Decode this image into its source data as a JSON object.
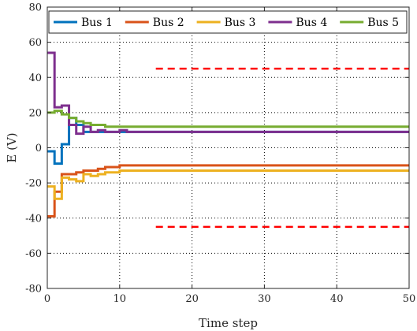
{
  "chart_data": {
    "type": "line",
    "title": "",
    "xlabel": "Time step",
    "ylabel": "E (V)",
    "xlim": [
      0,
      50
    ],
    "ylim": [
      -80,
      80
    ],
    "xticks": [
      0,
      10,
      20,
      30,
      40,
      50
    ],
    "yticks": [
      -80,
      -60,
      -40,
      -20,
      0,
      20,
      40,
      60,
      80
    ],
    "grid": true,
    "legend_position": "top",
    "line_style": "step",
    "series": [
      {
        "name": "Bus 1",
        "color": "#0072BD",
        "x": [
          0,
          1,
          2,
          3,
          4,
          5,
          50
        ],
        "y": [
          -2,
          -9,
          2,
          17,
          13,
          9,
          9
        ]
      },
      {
        "name": "Bus 2",
        "color": "#D95319",
        "x": [
          0,
          1,
          2,
          3,
          4,
          5,
          6,
          7,
          8,
          9,
          10,
          50
        ],
        "y": [
          -39,
          -25,
          -15,
          -15,
          -14,
          -13,
          -13,
          -12,
          -11,
          -11,
          -10,
          -10
        ]
      },
      {
        "name": "Bus 3",
        "color": "#EDB120",
        "x": [
          0,
          1,
          2,
          3,
          4,
          5,
          6,
          7,
          8,
          9,
          10,
          50
        ],
        "y": [
          -22,
          -29,
          -17,
          -18,
          -19,
          -15,
          -16,
          -15,
          -14,
          -14,
          -13,
          -13
        ]
      },
      {
        "name": "Bus 4",
        "color": "#7E2F8E",
        "x": [
          0,
          1,
          2,
          3,
          4,
          5,
          6,
          7,
          8,
          9,
          10,
          11,
          12,
          50
        ],
        "y": [
          54,
          23,
          24,
          13,
          8,
          12,
          9,
          10,
          9,
          9,
          10,
          9,
          9,
          9
        ]
      },
      {
        "name": "Bus 5",
        "color": "#77AC30",
        "x": [
          0,
          1,
          2,
          3,
          4,
          5,
          6,
          7,
          8,
          9,
          10,
          50
        ],
        "y": [
          20,
          21,
          19,
          17,
          15,
          14,
          13,
          13,
          12,
          12,
          12,
          12
        ]
      }
    ],
    "reference_lines": [
      {
        "y": 45,
        "x_start": 15,
        "x_end": 50,
        "color": "#FF0000",
        "style": "dashed"
      },
      {
        "y": -45,
        "x_start": 15,
        "x_end": 50,
        "color": "#FF0000",
        "style": "dashed"
      }
    ]
  }
}
